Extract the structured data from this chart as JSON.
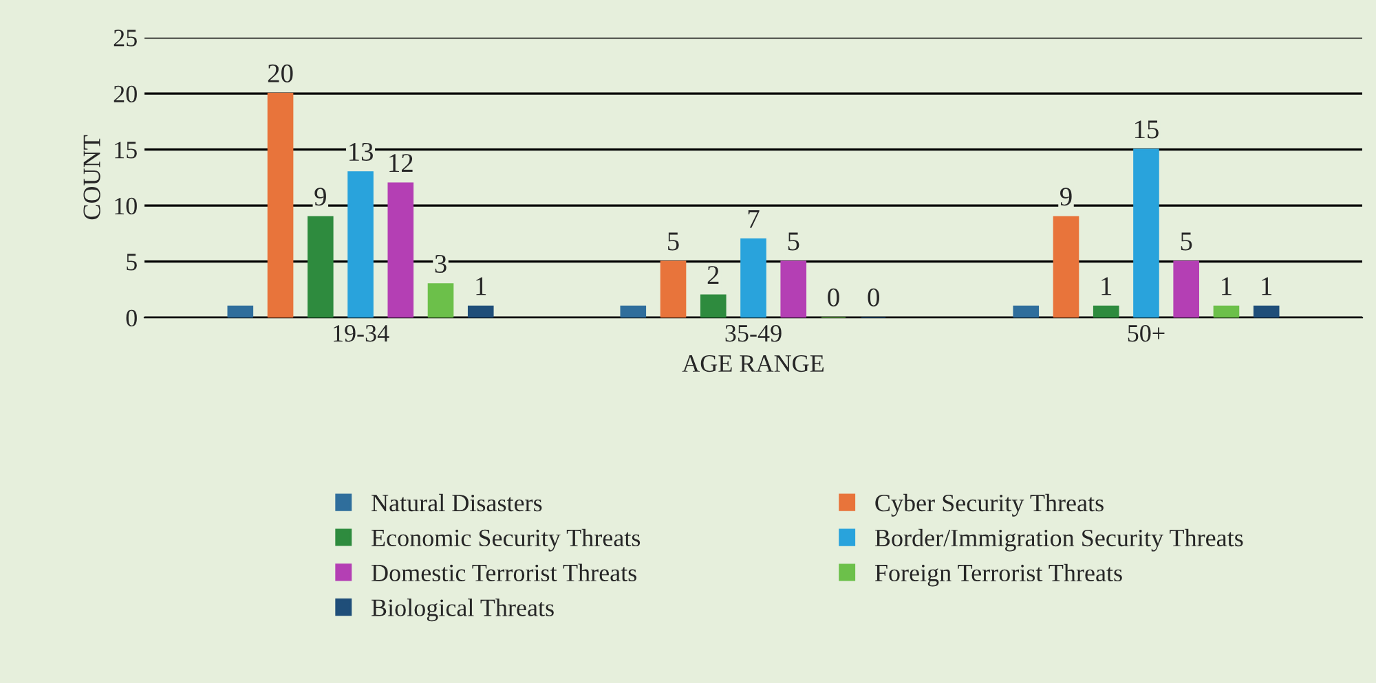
{
  "chart_data": {
    "type": "bar",
    "xlabel": "AGE RANGE",
    "ylabel": "COUNT",
    "categories": [
      "19-34",
      "35-49",
      "50+"
    ],
    "series": [
      {
        "name": "Natural Disasters",
        "color": "#2f6e9c",
        "values": [
          1,
          1,
          1
        ],
        "value_labels": [
          null,
          null,
          null
        ]
      },
      {
        "name": "Cyber Security Threats",
        "color": "#e8743b",
        "values": [
          20,
          5,
          9
        ],
        "value_labels": [
          "20",
          "5",
          "9"
        ]
      },
      {
        "name": "Economic Security Threats",
        "color": "#2e8b3e",
        "values": [
          9,
          2,
          1
        ],
        "value_labels": [
          "9",
          "2",
          "1"
        ]
      },
      {
        "name": "Border/Immigration Security Threats",
        "color": "#29a3dc",
        "values": [
          13,
          7,
          15
        ],
        "value_labels": [
          "13",
          "7",
          "15"
        ]
      },
      {
        "name": "Domestic Terrorist Threats",
        "color": "#b43fb4",
        "values": [
          12,
          5,
          5
        ],
        "value_labels": [
          "12",
          "5",
          "5"
        ]
      },
      {
        "name": "Foreign Terrorist Threats",
        "color": "#6cc04a",
        "values": [
          3,
          0,
          1
        ],
        "value_labels": [
          "3",
          "0",
          "1"
        ]
      },
      {
        "name": "Biological Threats",
        "color": "#1f4e79",
        "values": [
          1,
          0,
          1
        ],
        "value_labels": [
          "1",
          "0",
          "1"
        ]
      }
    ],
    "ylim": [
      0,
      25
    ],
    "yticks": [
      0,
      5,
      10,
      15,
      20,
      25
    ],
    "grid": "y",
    "legend": "bottom"
  }
}
